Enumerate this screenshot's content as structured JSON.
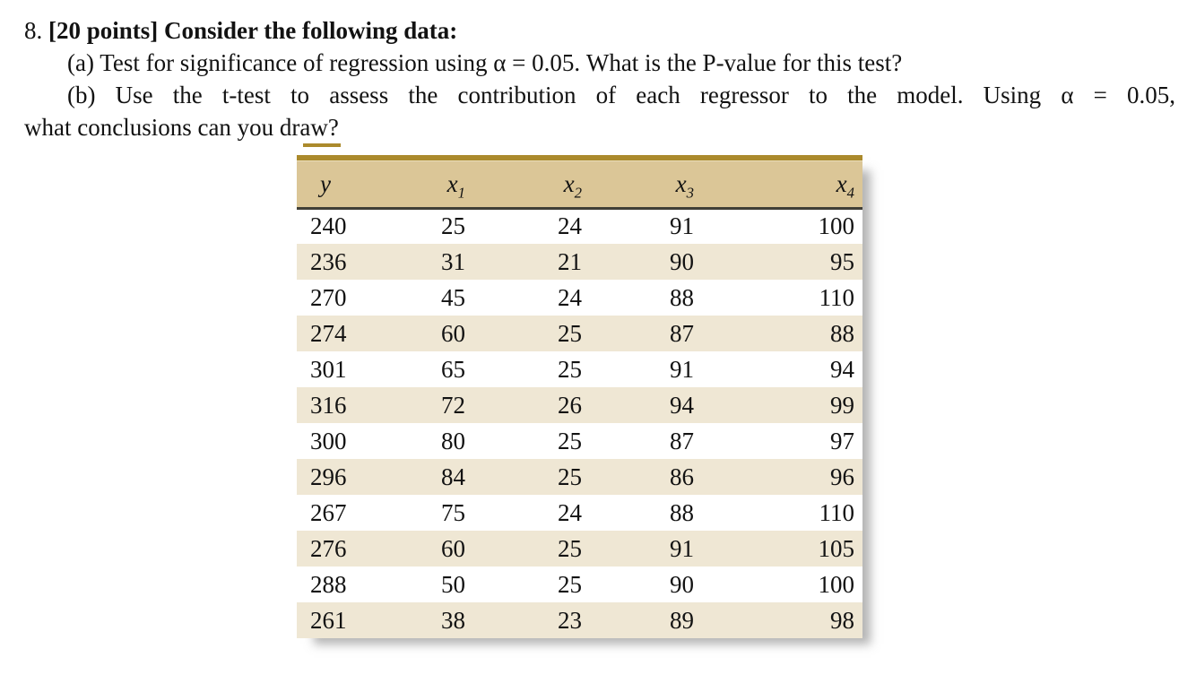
{
  "problem": {
    "number": "8.",
    "title_bold": "[20 points] Consider the following data:",
    "part_a": "(a) Test for significance of regression using α = 0.05. What is the P-value for this test?",
    "part_b_line1": "(b) Use the t-test to assess the contribution of each regressor to the model. Using α = 0.05,",
    "part_b_line2": "what conclusions can you draw?"
  },
  "table": {
    "headers": [
      {
        "base": "y",
        "sub": ""
      },
      {
        "base": "x",
        "sub": "1"
      },
      {
        "base": "x",
        "sub": "2"
      },
      {
        "base": "x",
        "sub": "3"
      },
      {
        "base": "x",
        "sub": "4"
      }
    ],
    "rows": [
      [
        240,
        25,
        24,
        91,
        100
      ],
      [
        236,
        31,
        21,
        90,
        95
      ],
      [
        270,
        45,
        24,
        88,
        110
      ],
      [
        274,
        60,
        25,
        87,
        88
      ],
      [
        301,
        65,
        25,
        91,
        94
      ],
      [
        316,
        72,
        26,
        94,
        99
      ],
      [
        300,
        80,
        25,
        87,
        97
      ],
      [
        296,
        84,
        25,
        86,
        96
      ],
      [
        267,
        75,
        24,
        88,
        110
      ],
      [
        276,
        60,
        25,
        91,
        105
      ],
      [
        288,
        50,
        25,
        90,
        100
      ],
      [
        261,
        38,
        23,
        89,
        98
      ]
    ]
  },
  "colors": {
    "gold_bar": "#ab8a2c",
    "table_header_bg": "#dbc697",
    "row_alt_bg": "#efe7d4",
    "row_bg": "#ffffff",
    "header_rule": "#403f37",
    "text": "#121212"
  }
}
